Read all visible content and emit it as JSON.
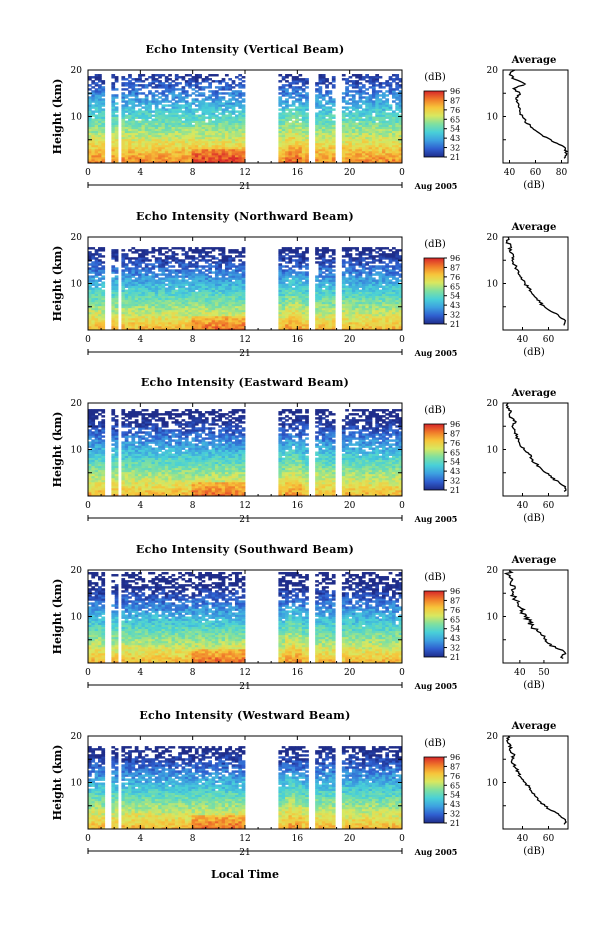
{
  "figure": {
    "ylabel": "Height (km)",
    "xlabel": "Local Time",
    "date_label": "Aug 2005",
    "day_label": "21",
    "colorbar_unit": "(dB)",
    "colorbar_ticks": [
      "96",
      "87",
      "76",
      "65",
      "54",
      "43",
      "32",
      "21"
    ],
    "average_title": "Average",
    "average_xlabel": "(dB)",
    "x_ticks": [
      "0",
      "4",
      "8",
      "12",
      "16",
      "20",
      "0"
    ],
    "y_ticks": [
      "20",
      "10"
    ],
    "colormap": [
      "#1f2d8a",
      "#2f5fd0",
      "#3da0e0",
      "#49d0d8",
      "#7fe0a0",
      "#d8e860",
      "#f7c53a",
      "#f07a2a",
      "#d8262a"
    ]
  },
  "chart_data": [
    {
      "type": "heatmap",
      "title": "Echo Intensity (Vertical Beam)",
      "colorbar_ticks": [
        "96",
        "87",
        "76",
        "65",
        "54",
        "43",
        "32",
        "21"
      ],
      "avg_ticks": [
        "40",
        "60",
        "80"
      ],
      "avg_xlim": [
        35,
        85
      ],
      "xlim": [
        0,
        24
      ],
      "ylim": [
        0,
        20
      ],
      "average_profile": {
        "height_km": [
          1,
          2,
          3,
          4,
          5,
          6,
          7,
          8,
          9,
          10,
          11,
          12,
          13,
          14,
          15,
          16,
          17,
          18,
          19,
          20
        ],
        "db": [
          82,
          84,
          83,
          78,
          72,
          65,
          60,
          56,
          52,
          50,
          48,
          47,
          46,
          45,
          48,
          43,
          52,
          44,
          40,
          44
        ]
      }
    },
    {
      "type": "heatmap",
      "title": "Echo Intensity (Northward Beam)",
      "colorbar_ticks": [
        "96",
        "87",
        "76",
        "65",
        "54",
        "43",
        "32",
        "21"
      ],
      "avg_ticks": [
        "40",
        "60"
      ],
      "avg_xlim": [
        25,
        75
      ],
      "xlim": [
        0,
        24
      ],
      "ylim": [
        0,
        20
      ],
      "average_profile": {
        "height_km": [
          1,
          2,
          3,
          4,
          5,
          6,
          7,
          8,
          9,
          10,
          11,
          12,
          13,
          14,
          15,
          16,
          17,
          18,
          19,
          20
        ],
        "db": [
          72,
          73,
          68,
          62,
          57,
          53,
          50,
          47,
          45,
          42,
          39,
          37,
          36,
          34,
          32,
          33,
          30,
          31,
          28,
          29
        ]
      }
    },
    {
      "type": "heatmap",
      "title": "Echo Intensity (Eastward Beam)",
      "colorbar_ticks": [
        "96",
        "87",
        "76",
        "65",
        "54",
        "43",
        "32",
        "21"
      ],
      "avg_ticks": [
        "40",
        "60"
      ],
      "avg_xlim": [
        25,
        75
      ],
      "xlim": [
        0,
        24
      ],
      "ylim": [
        0,
        20
      ],
      "average_profile": {
        "height_km": [
          1,
          2,
          3,
          4,
          5,
          6,
          7,
          8,
          9,
          10,
          11,
          12,
          13,
          14,
          15,
          16,
          17,
          18,
          19,
          20
        ],
        "db": [
          72,
          73,
          68,
          62,
          58,
          54,
          50,
          47,
          45,
          41,
          38,
          37,
          35,
          34,
          32,
          35,
          30,
          31,
          28,
          29
        ]
      }
    },
    {
      "type": "heatmap",
      "title": "Echo Intensity (Southward Beam)",
      "colorbar_ticks": [
        "96",
        "87",
        "76",
        "65",
        "54",
        "43",
        "32",
        "21"
      ],
      "avg_ticks": [
        "40",
        "50"
      ],
      "avg_xlim": [
        33,
        60
      ],
      "xlim": [
        0,
        24
      ],
      "ylim": [
        0,
        20
      ],
      "average_profile": {
        "height_km": [
          1,
          2,
          3,
          4,
          5,
          6,
          7,
          8,
          9,
          10,
          11,
          12,
          13,
          14,
          15,
          16,
          17,
          18,
          19,
          20
        ],
        "db": [
          58,
          59,
          56,
          53,
          51,
          49,
          47,
          45,
          44,
          42,
          41,
          40,
          39,
          38,
          37,
          38,
          36,
          37,
          35,
          36
        ]
      }
    },
    {
      "type": "heatmap",
      "title": "Echo Intensity (Westward Beam)",
      "colorbar_ticks": [
        "96",
        "87",
        "76",
        "65",
        "54",
        "43",
        "32",
        "21"
      ],
      "avg_ticks": [
        "40",
        "60"
      ],
      "avg_xlim": [
        25,
        75
      ],
      "xlim": [
        0,
        24
      ],
      "ylim": [
        0,
        20
      ],
      "average_profile": {
        "height_km": [
          1,
          2,
          3,
          4,
          5,
          6,
          7,
          8,
          9,
          10,
          11,
          12,
          13,
          14,
          15,
          16,
          17,
          18,
          19,
          20
        ],
        "db": [
          72,
          73,
          68,
          62,
          57,
          53,
          50,
          47,
          45,
          42,
          39,
          37,
          35,
          33,
          32,
          34,
          30,
          31,
          28,
          29
        ]
      }
    }
  ]
}
